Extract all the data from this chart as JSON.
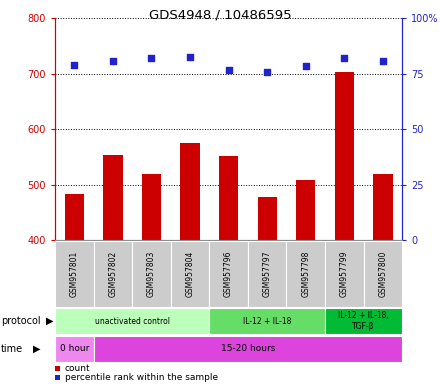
{
  "title": "GDS4948 / 10486595",
  "samples": [
    "GSM957801",
    "GSM957802",
    "GSM957803",
    "GSM957804",
    "GSM957796",
    "GSM957797",
    "GSM957798",
    "GSM957799",
    "GSM957800"
  ],
  "counts": [
    483,
    553,
    519,
    574,
    552,
    477,
    509,
    703,
    519
  ],
  "percentile_ranks": [
    79,
    80.5,
    82,
    82.5,
    76.5,
    75.5,
    78.5,
    82,
    80.5
  ],
  "ylim_left": [
    400,
    800
  ],
  "ylim_right": [
    0,
    100
  ],
  "yticks_left": [
    400,
    500,
    600,
    700,
    800
  ],
  "yticks_right": [
    0,
    25,
    50,
    75,
    100
  ],
  "bar_color": "#cc0000",
  "dot_color": "#2222cc",
  "dot_size": 22,
  "protocol_groups": [
    {
      "label": "unactivated control",
      "start": 0,
      "end": 4,
      "color": "#bbffbb"
    },
    {
      "label": "IL-12 + IL-18",
      "start": 4,
      "end": 7,
      "color": "#66dd66"
    },
    {
      "label": "IL-12 + IL-18,\nTGF-β",
      "start": 7,
      "end": 9,
      "color": "#00bb33"
    }
  ],
  "time_groups": [
    {
      "label": "0 hour",
      "start": 0,
      "end": 1,
      "color": "#ee88ee"
    },
    {
      "label": "15-20 hours",
      "start": 1,
      "end": 9,
      "color": "#dd44dd"
    }
  ],
  "legend_count_label": "count",
  "legend_pct_label": "percentile rank within the sample",
  "bg_color": "#ffffff",
  "sample_box_color": "#cccccc",
  "left_axis_color": "#cc0000",
  "right_axis_color": "#2222cc"
}
